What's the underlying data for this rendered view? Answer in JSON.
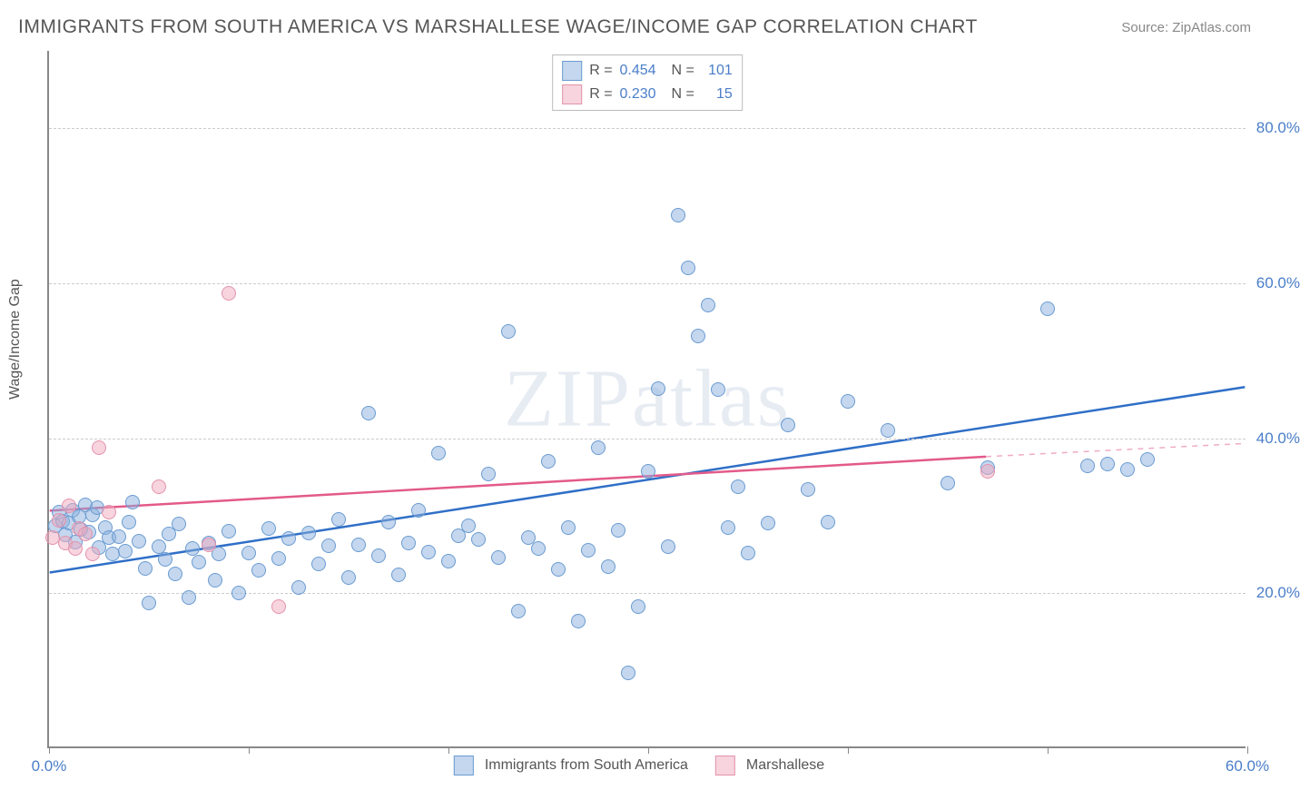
{
  "title": "IMMIGRANTS FROM SOUTH AMERICA VS MARSHALLESE WAGE/INCOME GAP CORRELATION CHART",
  "source_label": "Source: ",
  "source_value": "ZipAtlas.com",
  "y_axis_label": "Wage/Income Gap",
  "watermark": "ZIPatlas",
  "chart": {
    "type": "scatter",
    "xlim": [
      0,
      60
    ],
    "ylim": [
      0,
      90
    ],
    "x_ticks": [
      0,
      10,
      20,
      30,
      40,
      50,
      60
    ],
    "x_tick_labels": [
      "0.0%",
      "",
      "",
      "",
      "",
      "",
      "60.0%"
    ],
    "y_ticks": [
      20,
      40,
      60,
      80
    ],
    "y_tick_labels": [
      "20.0%",
      "40.0%",
      "60.0%",
      "80.0%"
    ],
    "background_color": "#ffffff",
    "grid_color": "#cccccc",
    "axis_color": "#888888",
    "series": [
      {
        "name": "Immigrants from South America",
        "fill": "rgba(137,175,222,0.5)",
        "stroke": "#6a9bd1",
        "trend_color": "#2f6fc7",
        "trend": {
          "x1": 0,
          "y1": 22.5,
          "x2": 60,
          "y2": 46.5
        },
        "r": 0.454,
        "n": 101,
        "marker_radius": 8,
        "points": [
          [
            0.3,
            28.5
          ],
          [
            0.5,
            30.2
          ],
          [
            0.7,
            29.1
          ],
          [
            0.8,
            27.3
          ],
          [
            1.0,
            28.8
          ],
          [
            1.2,
            30.5
          ],
          [
            1.3,
            26.4
          ],
          [
            1.5,
            29.7
          ],
          [
            1.6,
            28.0
          ],
          [
            1.8,
            31.2
          ],
          [
            2.0,
            27.6
          ],
          [
            2.2,
            29.9
          ],
          [
            2.4,
            30.8
          ],
          [
            2.5,
            25.7
          ],
          [
            2.8,
            28.3
          ],
          [
            3.0,
            26.9
          ],
          [
            3.2,
            24.8
          ],
          [
            3.5,
            27.1
          ],
          [
            3.8,
            25.2
          ],
          [
            4.0,
            29.0
          ],
          [
            4.2,
            31.5
          ],
          [
            4.5,
            26.5
          ],
          [
            4.8,
            23.0
          ],
          [
            5.0,
            18.5
          ],
          [
            5.5,
            25.8
          ],
          [
            5.8,
            24.1
          ],
          [
            6.0,
            27.4
          ],
          [
            6.3,
            22.3
          ],
          [
            6.5,
            28.7
          ],
          [
            7.0,
            19.2
          ],
          [
            7.2,
            25.5
          ],
          [
            7.5,
            23.8
          ],
          [
            8.0,
            26.2
          ],
          [
            8.3,
            21.5
          ],
          [
            8.5,
            24.9
          ],
          [
            9.0,
            27.8
          ],
          [
            9.5,
            19.8
          ],
          [
            10.0,
            25.0
          ],
          [
            10.5,
            22.7
          ],
          [
            11.0,
            28.1
          ],
          [
            11.5,
            24.3
          ],
          [
            12.0,
            26.8
          ],
          [
            12.5,
            20.5
          ],
          [
            13.0,
            27.5
          ],
          [
            13.5,
            23.5
          ],
          [
            14.0,
            25.9
          ],
          [
            14.5,
            29.3
          ],
          [
            15.0,
            21.8
          ],
          [
            15.5,
            26.0
          ],
          [
            16.0,
            43.0
          ],
          [
            16.5,
            24.6
          ],
          [
            17.0,
            28.9
          ],
          [
            17.5,
            22.1
          ],
          [
            18.0,
            26.3
          ],
          [
            18.5,
            30.5
          ],
          [
            19.0,
            25.1
          ],
          [
            19.5,
            37.8
          ],
          [
            20.0,
            23.9
          ],
          [
            20.5,
            27.2
          ],
          [
            21.0,
            28.5
          ],
          [
            21.5,
            26.7
          ],
          [
            22.0,
            35.2
          ],
          [
            22.5,
            24.4
          ],
          [
            23.0,
            53.5
          ],
          [
            23.5,
            17.5
          ],
          [
            24.0,
            27.0
          ],
          [
            24.5,
            25.6
          ],
          [
            25.0,
            36.8
          ],
          [
            25.5,
            22.8
          ],
          [
            26.0,
            28.2
          ],
          [
            26.5,
            16.2
          ],
          [
            27.0,
            25.3
          ],
          [
            27.5,
            38.5
          ],
          [
            28.0,
            23.2
          ],
          [
            28.5,
            27.9
          ],
          [
            29.0,
            9.5
          ],
          [
            29.5,
            18.0
          ],
          [
            30.0,
            35.5
          ],
          [
            30.5,
            46.2
          ],
          [
            31.0,
            25.8
          ],
          [
            31.5,
            68.5
          ],
          [
            32.0,
            61.8
          ],
          [
            32.5,
            53.0
          ],
          [
            33.0,
            57.0
          ],
          [
            33.5,
            46.0
          ],
          [
            34.0,
            28.3
          ],
          [
            34.5,
            33.5
          ],
          [
            35.0,
            25.0
          ],
          [
            36.0,
            28.8
          ],
          [
            37.0,
            41.5
          ],
          [
            38.0,
            33.2
          ],
          [
            39.0,
            29.0
          ],
          [
            40.0,
            44.5
          ],
          [
            42.0,
            40.8
          ],
          [
            45.0,
            34.0
          ],
          [
            47.0,
            36.0
          ],
          [
            50.0,
            56.5
          ],
          [
            52.0,
            36.2
          ],
          [
            53.0,
            36.5
          ],
          [
            54.0,
            35.8
          ],
          [
            55.0,
            37.0
          ]
        ]
      },
      {
        "name": "Marshallese",
        "fill": "rgba(240,170,190,0.5)",
        "stroke": "#e393ad",
        "trend_color": "#e35a8a",
        "trend": {
          "x1": 0,
          "y1": 30.5,
          "x2": 47,
          "y2": 37.5
        },
        "trend_dash": {
          "x1": 47,
          "y1": 37.5,
          "x2": 60,
          "y2": 39.2
        },
        "r": 0.23,
        "n": 15,
        "marker_radius": 8,
        "points": [
          [
            0.2,
            27.0
          ],
          [
            0.5,
            29.2
          ],
          [
            0.8,
            26.3
          ],
          [
            1.0,
            31.0
          ],
          [
            1.3,
            25.5
          ],
          [
            1.5,
            28.1
          ],
          [
            1.8,
            27.4
          ],
          [
            2.2,
            24.8
          ],
          [
            2.5,
            38.5
          ],
          [
            3.0,
            30.2
          ],
          [
            5.5,
            33.5
          ],
          [
            8.0,
            26.0
          ],
          [
            9.0,
            58.5
          ],
          [
            11.5,
            18.0
          ],
          [
            47.0,
            35.5
          ]
        ]
      }
    ],
    "legend_bottom": [
      {
        "label": "Immigrants from South America",
        "fill": "rgba(137,175,222,0.5)",
        "stroke": "#6a9bd1"
      },
      {
        "label": "Marshallese",
        "fill": "rgba(240,170,190,0.5)",
        "stroke": "#e393ad"
      }
    ]
  }
}
